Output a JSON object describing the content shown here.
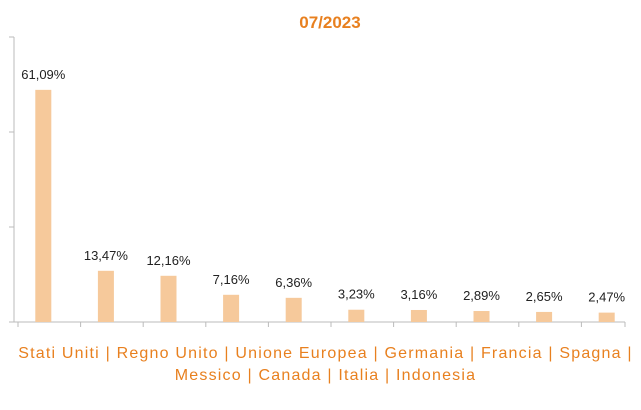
{
  "chart_data": {
    "type": "bar",
    "title": "07/2023",
    "values": [
      61.09,
      13.47,
      12.16,
      7.16,
      6.36,
      3.23,
      3.16,
      2.89,
      2.65,
      2.47
    ],
    "value_labels": [
      "61,09%",
      "13,47%",
      "12,16%",
      "7,16%",
      "6,36%",
      "3,23%",
      "3,16%",
      "2,89%",
      "2,65%",
      "2,47%"
    ],
    "x_label": "Stati Uniti | Regno Unito | Unione Europea | Germania | Francia | Spagna | Messico | Canada | Italia | Indonesia",
    "color": "#f6c99b",
    "ylim": [
      0,
      75
    ],
    "yticks": [
      0,
      25,
      50,
      75
    ]
  }
}
